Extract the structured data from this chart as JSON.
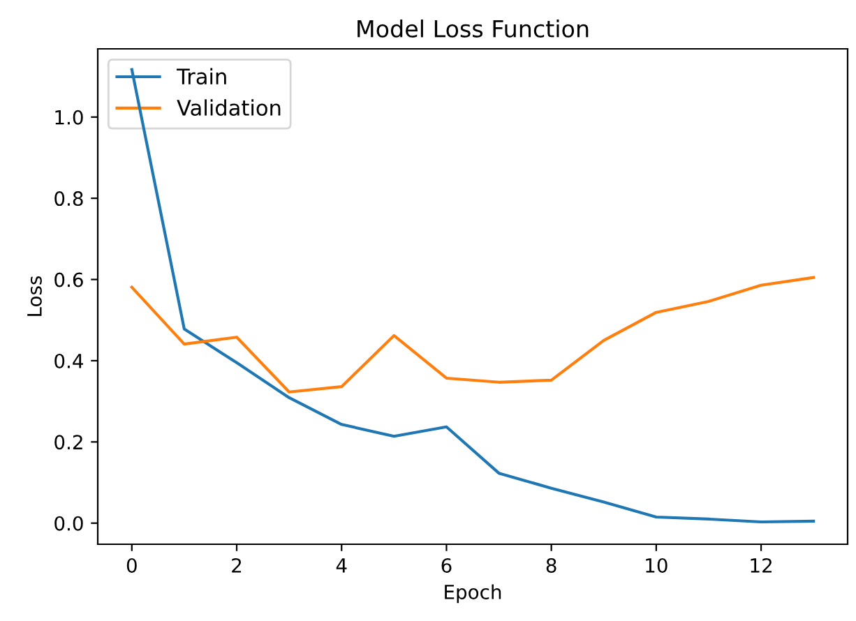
{
  "chart_data": {
    "type": "line",
    "title": "Model Loss Function",
    "xlabel": "Epoch",
    "ylabel": "Loss",
    "x": [
      0,
      1,
      2,
      3,
      4,
      5,
      6,
      7,
      8,
      9,
      10,
      11,
      12,
      13
    ],
    "series": [
      {
        "name": "Train",
        "color": "#1f77b4",
        "values": [
          1.117,
          0.478,
          0.395,
          0.309,
          0.243,
          0.214,
          0.237,
          0.123,
          0.086,
          0.052,
          0.015,
          0.01,
          0.003,
          0.005
        ]
      },
      {
        "name": "Validation",
        "color": "#ff7f0e",
        "values": [
          0.581,
          0.441,
          0.458,
          0.323,
          0.336,
          0.462,
          0.357,
          0.347,
          0.352,
          0.45,
          0.519,
          0.546,
          0.586,
          0.605
        ]
      }
    ],
    "xlim": [
      -0.65,
      13.65
    ],
    "ylim": [
      -0.052,
      1.168
    ],
    "xticks": [
      0,
      2,
      4,
      6,
      8,
      10,
      12
    ],
    "yticks": [
      {
        "value": 0,
        "label": "0.0"
      },
      {
        "value": 0.2,
        "label": "0.2"
      },
      {
        "value": 0.4,
        "label": "0.4"
      },
      {
        "value": 0.6,
        "label": "0.6"
      },
      {
        "value": 0.8,
        "label": "0.8"
      },
      {
        "value": 1.0,
        "label": "1.0"
      }
    ],
    "legend": "top left",
    "grid": false
  }
}
